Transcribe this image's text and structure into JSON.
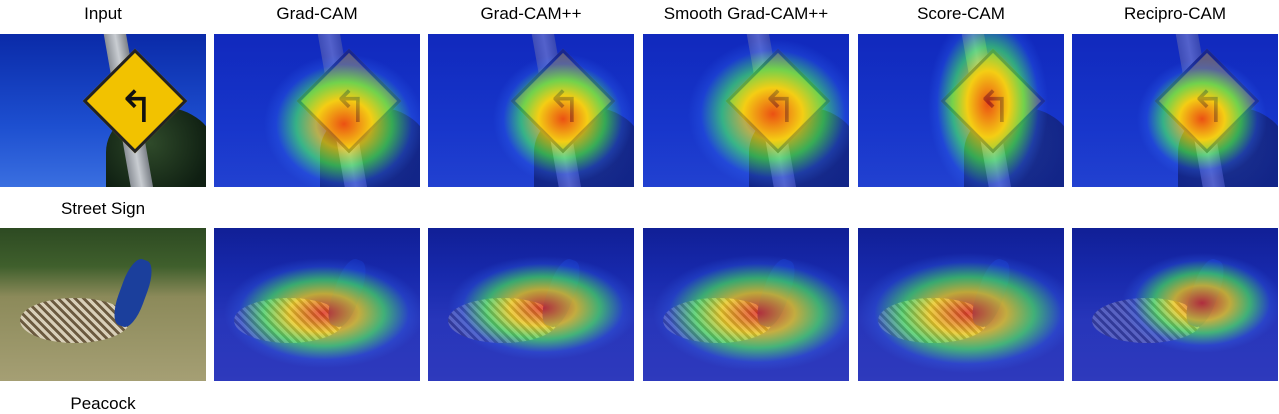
{
  "columns": [
    "Input",
    "Grad-CAM",
    "Grad-CAM++",
    "Smooth Grad-CAM++",
    "Score-CAM",
    "Recipro-CAM"
  ],
  "rows": [
    {
      "label": "Street Sign"
    },
    {
      "label": "Peacock"
    }
  ],
  "colors": {
    "heat_hot": "#e8251a",
    "heat_warm": "#f5d21c",
    "heat_mid": "#3fd86a",
    "heat_cool": "#1e3fd8"
  }
}
